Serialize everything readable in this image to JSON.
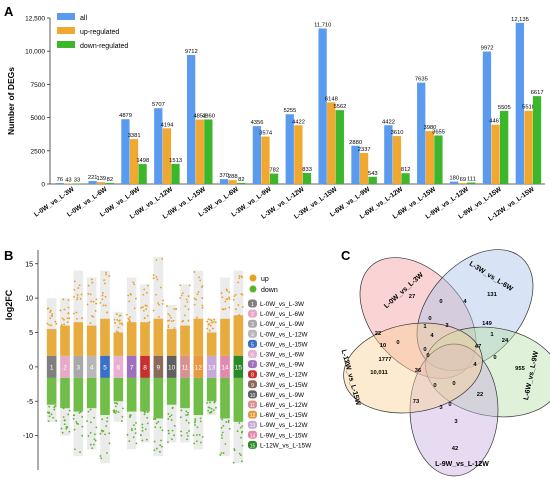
{
  "panels": {
    "a": "A",
    "b": "B",
    "c": "C"
  },
  "colors": {
    "all": "#5a9bf0",
    "up": "#f0a830",
    "down": "#3cb62a"
  },
  "chart_data": [
    {
      "type": "bar",
      "panel": "A",
      "ylabel": "Number of DEGs",
      "ylim": [
        0,
        12500
      ],
      "yticks": [
        "0",
        "2500",
        "5000",
        "7500",
        "10,000",
        "12,500"
      ],
      "legend": [
        "all",
        "up-regulated",
        "down-regulated"
      ],
      "legend_position": "top-left",
      "categories": [
        "L-0W_vs_L-3W",
        "L-0W_vs_L-6W",
        "L-0W_vs_L-9W",
        "L-0W_vs_L-12W",
        "L-0W_vs_L-15W",
        "L-3W_vs_L-6W",
        "L-3W_vs_L-9W",
        "L-3W_vs_L-12W",
        "L-3W_vs_L-15W",
        "L-6W_vs_L-9W",
        "L-6W_vs_L-12W",
        "L-6W_vs_L-15W",
        "L-9W_vs_L-12W",
        "L-9W_vs_L-15W",
        "L-12W_vs_L-15W"
      ],
      "series": [
        {
          "name": "all",
          "values": [
            76,
            221,
            4879,
            5707,
            9712,
            370,
            4356,
            5255,
            11710,
            2880,
            4422,
            7635,
            180,
            9972,
            12135
          ]
        },
        {
          "name": "up-regulated",
          "values": [
            43,
            139,
            3381,
            4194,
            4852,
            288,
            3574,
            4422,
            6148,
            2337,
            3610,
            3980,
            69,
            4467,
            5518
          ]
        },
        {
          "name": "down-regulated",
          "values": [
            33,
            82,
            1498,
            1513,
            4860,
            82,
            782,
            833,
            5562,
            543,
            812,
            3655,
            111,
            5505,
            6617
          ]
        }
      ],
      "labels": {
        "all": [
          "76",
          "221",
          "4879",
          "5707",
          "9712",
          "370",
          "4356",
          "5255",
          "11,710",
          "2880",
          "4422",
          "7635",
          "180",
          "9972",
          "12,135"
        ],
        "up": [
          "43",
          "139",
          "3381",
          "4194",
          "4852",
          "288",
          "3574",
          "4422",
          "6148",
          "2337",
          "3610",
          "3980",
          "69",
          "4467",
          "5518"
        ],
        "down": [
          "33",
          "82",
          "1498",
          "1513",
          "4860",
          "82",
          "782",
          "833",
          "5562",
          "543",
          "812",
          "3655",
          "111",
          "5505",
          "6617"
        ]
      }
    },
    {
      "type": "scatter",
      "panel": "B",
      "ylabel": "log2FC",
      "ylim": [
        -15,
        17
      ],
      "yticks": [
        -10,
        -5,
        0,
        5,
        10,
        15
      ],
      "legend": [
        "up",
        "down"
      ],
      "up_color": "#e8a020",
      "down_color": "#5ab52a",
      "comparisons": [
        "L-0W_vs_L-3W",
        "L-0W_vs_L-6W",
        "L-0W_vs_L-9W",
        "L-0W_vs_L-12W",
        "L-0W_vs_L-15W",
        "L-3W_vs_L-6W",
        "L-3W_vs_L-9W",
        "L-3W_vs_L-12W",
        "L-3W_vs_L-15W",
        "L-6W_vs_L-9W",
        "L-6W_vs_L-12W",
        "L-6W_vs_L-15W",
        "L-9W_vs_L-12W",
        "L-9W_vs_L-15W",
        "L-12W_vs_L-15W"
      ],
      "box_labels": [
        "1",
        "2",
        "3",
        "4",
        "5",
        "6",
        "7",
        "8",
        "9",
        "10",
        "11",
        "12",
        "13",
        "14",
        "15"
      ],
      "box_colors": [
        "#808080",
        "#e8a8c8",
        "#a8a8a8",
        "#b8b8b8",
        "#3a70c8",
        "#e8b0d0",
        "#a070c0",
        "#c83030",
        "#8a6a5a",
        "#606060",
        "#d89090",
        "#e89a40",
        "#c8a8d8",
        "#e08ab0",
        "#2a8a2a"
      ],
      "range_max": [
        10,
        10,
        14,
        13,
        14,
        8,
        13,
        12,
        16,
        9,
        12,
        14,
        7,
        13,
        14
      ],
      "range_min": [
        -8,
        -10,
        -13,
        -12,
        -14,
        -8,
        -12,
        -11,
        -13,
        -11,
        -11,
        -12,
        -7,
        -13,
        -14
      ],
      "up_top": [
        5.5,
        6,
        6.5,
        6,
        7,
        5,
        6.5,
        6.5,
        7,
        5.5,
        6,
        7,
        5,
        7,
        7.5
      ],
      "down_bottom": [
        -5.5,
        -6,
        -6.5,
        -6,
        -7,
        -5,
        -6.5,
        -6.5,
        -7.5,
        -5.5,
        -6,
        -7,
        -5,
        -7.5,
        -8
      ]
    },
    {
      "type": "venn",
      "panel": "C",
      "sets": [
        "L-0W_vs_L-3W",
        "L-3W_vs_L-6W",
        "L-6W_vs_L-9W",
        "L-9W_vs_L-12W",
        "L-12W_vs_L-15W"
      ],
      "set_labels": [
        "L-0W_vs_L-3W",
        "L-3W_vs_L-6W",
        "L-6W_vs_L-9W",
        "L-9W_vs_L-12W",
        "L-12W_vs_L-15W"
      ],
      "set_colors": [
        "#f4a0a0",
        "#a8c4e8",
        "#b8e0a8",
        "#c8b0e0",
        "#f8d098"
      ],
      "region_counts": [
        "27",
        "131",
        "955",
        "42",
        "10,011",
        "0",
        "4",
        "149",
        "1",
        "24",
        "47",
        "3",
        "0",
        "1",
        "4",
        "0",
        "22",
        "10",
        "0",
        "1777",
        "36",
        "0",
        "4",
        "0",
        "3",
        "0",
        "22",
        "73",
        "3",
        "0",
        "0"
      ]
    }
  ]
}
